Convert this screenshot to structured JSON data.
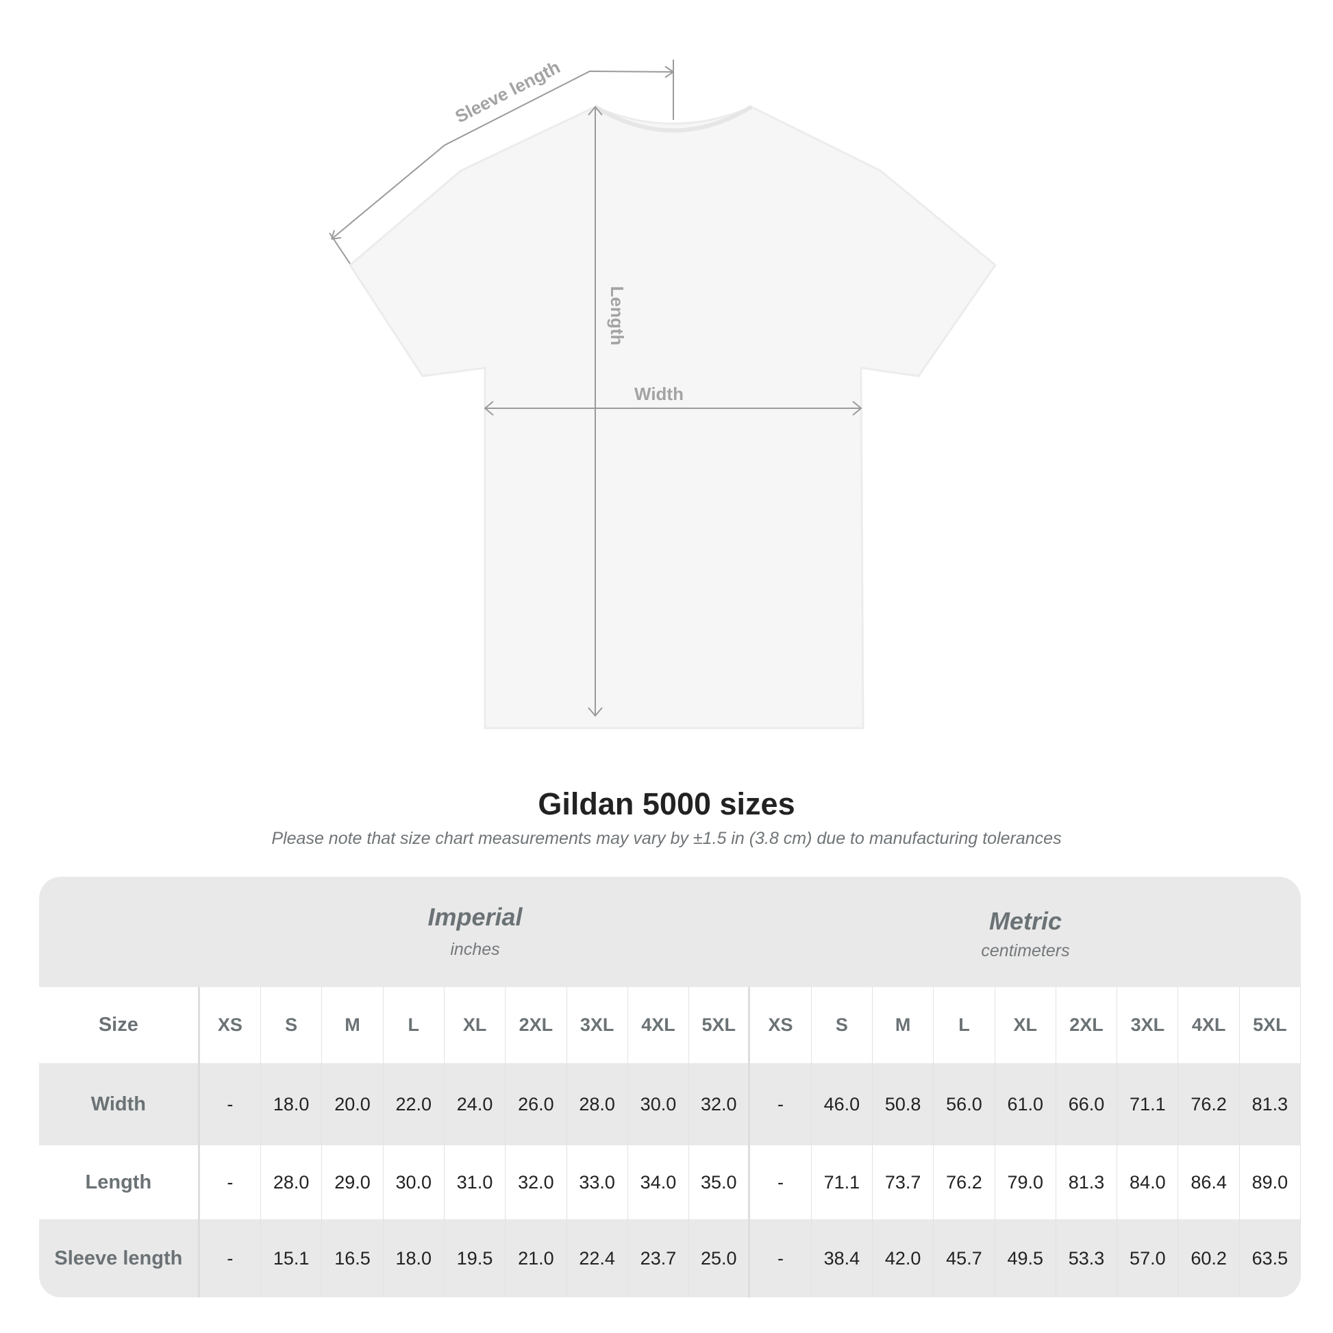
{
  "diagram": {
    "labels": {
      "sleeve": "Sleeve length",
      "length": "Length",
      "width": "Width"
    }
  },
  "title": "Gildan 5000 sizes",
  "subtitle": "Please note that size chart measurements may vary by ±1.5 in (3.8 cm) due to manufacturing tolerances",
  "table": {
    "imperial": {
      "name": "Imperial",
      "unit": "inches"
    },
    "metric": {
      "name": "Metric",
      "unit": "centimeters"
    },
    "size_label": "Size",
    "sizes": [
      "XS",
      "S",
      "M",
      "L",
      "XL",
      "2XL",
      "3XL",
      "4XL",
      "5XL"
    ],
    "rows": [
      {
        "label": "Width",
        "imperial": [
          "-",
          "18.0",
          "20.0",
          "22.0",
          "24.0",
          "26.0",
          "28.0",
          "30.0",
          "32.0"
        ],
        "metric": [
          "-",
          "46.0",
          "50.8",
          "56.0",
          "61.0",
          "66.0",
          "71.1",
          "76.2",
          "81.3"
        ]
      },
      {
        "label": "Length",
        "imperial": [
          "-",
          "28.0",
          "29.0",
          "30.0",
          "31.0",
          "32.0",
          "33.0",
          "34.0",
          "35.0"
        ],
        "metric": [
          "-",
          "71.1",
          "73.7",
          "76.2",
          "79.0",
          "81.3",
          "84.0",
          "86.4",
          "89.0"
        ]
      },
      {
        "label": "Sleeve length",
        "imperial": [
          "-",
          "15.1",
          "16.5",
          "18.0",
          "19.5",
          "21.0",
          "22.4",
          "23.7",
          "25.0"
        ],
        "metric": [
          "-",
          "38.4",
          "42.0",
          "45.7",
          "49.5",
          "53.3",
          "57.0",
          "60.2",
          "63.5"
        ]
      }
    ]
  },
  "colors": {
    "band": "#e9e9e9",
    "label": "#6b7275",
    "value": "#222222",
    "measure_line": "#9a9a9a"
  }
}
